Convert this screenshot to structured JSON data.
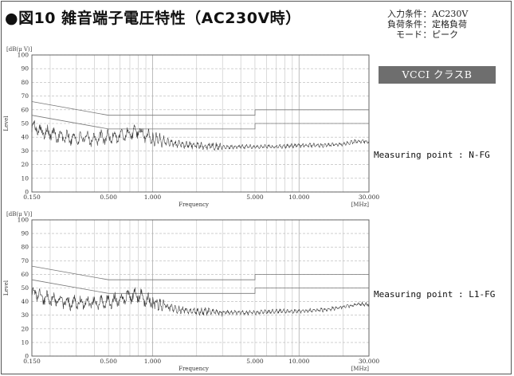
{
  "title": "●図10 雑音端子電圧特性（AC230V時）",
  "conditions": [
    {
      "key": "入力条件",
      "sep": "：",
      "value": "AC230V"
    },
    {
      "key": "負荷条件",
      "sep": "：",
      "value": "定格負荷"
    },
    {
      "key": "モード",
      "sep": "：",
      "value": "ピーク"
    }
  ],
  "badge": "VCCI クラスB",
  "colors": {
    "badge_bg": "#6e6e6e",
    "trace": "#333333",
    "grid": "#b5b5b5",
    "limit": "#777777"
  },
  "chart_data": [
    {
      "type": "line",
      "measuring_point": "Measuring point : N-FG",
      "y_unit": "[dB(μ V)]",
      "ylabel": "Level",
      "xlabel": "Frequency",
      "x_unit": "[MHz]",
      "x_scale": "log",
      "xlim": [
        0.15,
        30
      ],
      "ylim": [
        0,
        100
      ],
      "x_ticks": [
        {
          "v": 0.15,
          "label": "0.150"
        },
        {
          "v": 0.5,
          "label": "0.500"
        },
        {
          "v": 1,
          "label": "1.000"
        },
        {
          "v": 5,
          "label": "5.000"
        },
        {
          "v": 10,
          "label": "10.000"
        },
        {
          "v": 30,
          "label": "30.000"
        }
      ],
      "y_ticks": [
        0,
        10,
        20,
        30,
        40,
        50,
        60,
        70,
        80,
        90,
        100
      ],
      "limits": [
        {
          "x": [
            0.15,
            0.5,
            0.5,
            5,
            5,
            30
          ],
          "y": [
            66,
            56,
            56,
            56,
            60,
            60
          ]
        },
        {
          "x": [
            0.15,
            0.5,
            0.5,
            5,
            5,
            30
          ],
          "y": [
            56,
            46,
            46,
            46,
            50,
            50
          ]
        }
      ],
      "series": [
        {
          "x": [
            0.15,
            0.16,
            0.17,
            0.18,
            0.2,
            0.22,
            0.25,
            0.3,
            0.35,
            0.4,
            0.5,
            0.6,
            0.7,
            0.8,
            0.9,
            1.0,
            1.2,
            1.5,
            2,
            3,
            5,
            7,
            10,
            15,
            20,
            25,
            30
          ],
          "y": [
            46,
            48,
            45,
            44,
            43,
            41,
            40,
            39,
            39,
            39,
            40,
            41,
            43,
            44,
            41,
            40,
            37,
            35,
            34,
            33,
            33,
            33,
            34,
            34,
            35,
            37,
            37
          ]
        }
      ]
    },
    {
      "type": "line",
      "measuring_point": "Measuring point : L1-FG",
      "y_unit": "[dB(μ V)]",
      "ylabel": "Level",
      "xlabel": "Frequency",
      "x_unit": "[MHz]",
      "x_scale": "log",
      "xlim": [
        0.15,
        30
      ],
      "ylim": [
        0,
        100
      ],
      "x_ticks": [
        {
          "v": 0.15,
          "label": "0.150"
        },
        {
          "v": 0.5,
          "label": "0.500"
        },
        {
          "v": 1,
          "label": "1.000"
        },
        {
          "v": 5,
          "label": "5.000"
        },
        {
          "v": 10,
          "label": "10.000"
        },
        {
          "v": 30,
          "label": "30.000"
        }
      ],
      "y_ticks": [
        0,
        10,
        20,
        30,
        40,
        50,
        60,
        70,
        80,
        90,
        100
      ],
      "limits": [
        {
          "x": [
            0.15,
            0.5,
            0.5,
            5,
            5,
            30
          ],
          "y": [
            66,
            56,
            56,
            56,
            60,
            60
          ]
        },
        {
          "x": [
            0.15,
            0.5,
            0.5,
            5,
            5,
            30
          ],
          "y": [
            56,
            46,
            46,
            46,
            50,
            50
          ]
        }
      ],
      "series": [
        {
          "x": [
            0.15,
            0.16,
            0.17,
            0.18,
            0.2,
            0.22,
            0.25,
            0.3,
            0.35,
            0.4,
            0.5,
            0.6,
            0.7,
            0.8,
            0.9,
            1.0,
            1.2,
            1.5,
            2,
            3,
            5,
            7,
            10,
            15,
            20,
            25,
            30
          ],
          "y": [
            45,
            47,
            44,
            43,
            42,
            41,
            40,
            39,
            39,
            39,
            40,
            42,
            44,
            45,
            41,
            40,
            37,
            34,
            33,
            32,
            32,
            33,
            33,
            34,
            36,
            38,
            38
          ]
        }
      ]
    }
  ]
}
